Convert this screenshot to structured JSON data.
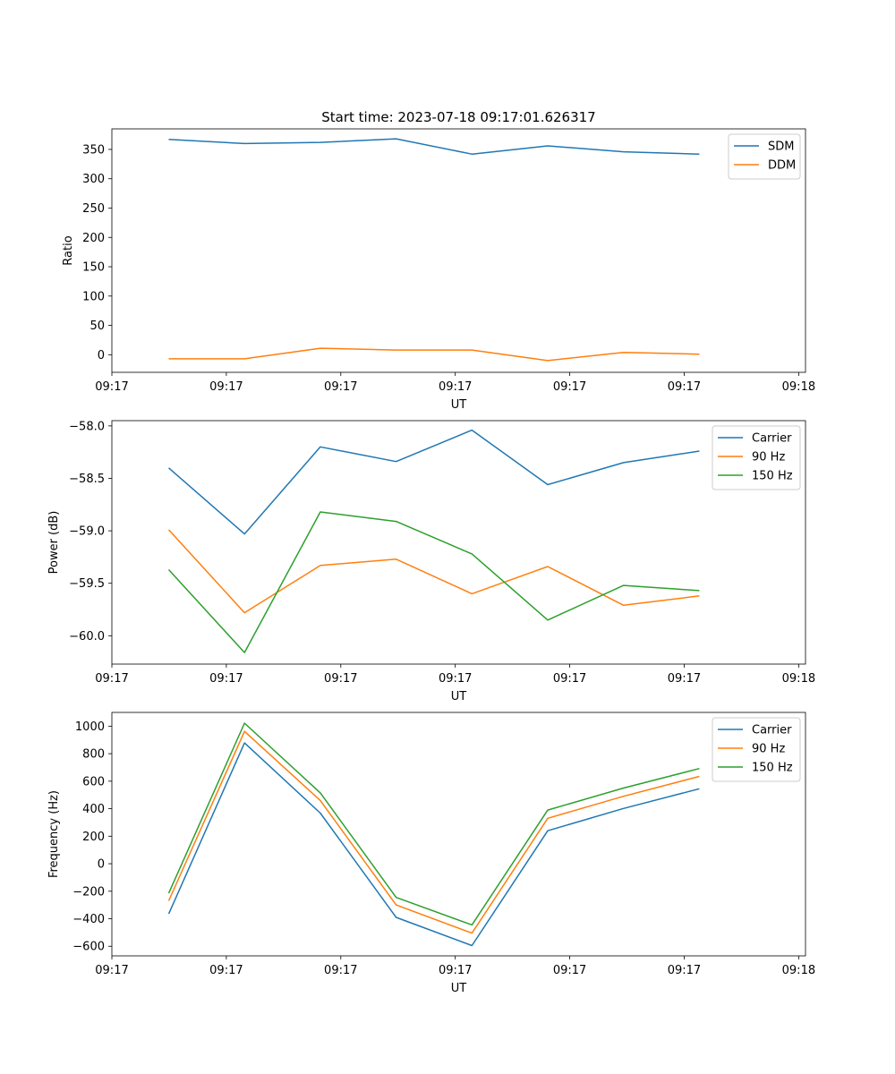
{
  "suptitle": "Start time: 2023-07-18 09:17:01.626317",
  "chart_data": [
    {
      "type": "line",
      "title": "Start time: 2023-07-18 09:17:01.626317",
      "xlabel": "UT",
      "ylabel": "Ratio",
      "x": [
        0,
        1,
        2,
        3,
        4,
        5,
        6,
        7
      ],
      "xlim": [
        -0.75,
        8.4
      ],
      "xticks": [
        -0.75,
        0.76,
        2.27,
        3.78,
        5.29,
        6.8,
        8.31
      ],
      "xtick_labels": [
        "09:17",
        "09:17",
        "09:17",
        "09:17",
        "09:17",
        "09:17",
        "09:18"
      ],
      "ylim": [
        -30,
        385
      ],
      "yticks": [
        0,
        50,
        100,
        150,
        200,
        250,
        300,
        350
      ],
      "ytick_labels": [
        "0",
        "50",
        "100",
        "150",
        "200",
        "250",
        "300",
        "350"
      ],
      "legend": "top-right",
      "series": [
        {
          "name": "SDM",
          "color": "#1f77b4",
          "values": [
            367,
            360,
            362,
            368,
            342,
            356,
            346,
            342
          ]
        },
        {
          "name": "DDM",
          "color": "#ff7f0e",
          "values": [
            -7,
            -7,
            11,
            8,
            8,
            -10,
            4,
            1
          ]
        }
      ]
    },
    {
      "type": "line",
      "title": "",
      "xlabel": "UT",
      "ylabel": "Power (dB)",
      "x": [
        0,
        1,
        2,
        3,
        4,
        5,
        6,
        7
      ],
      "xlim": [
        -0.75,
        8.4
      ],
      "xticks": [
        -0.75,
        0.76,
        2.27,
        3.78,
        5.29,
        6.8,
        8.31
      ],
      "xtick_labels": [
        "09:17",
        "09:17",
        "09:17",
        "09:17",
        "09:17",
        "09:17",
        "09:18"
      ],
      "ylim": [
        -60.27,
        -57.95
      ],
      "yticks": [
        -60.0,
        -59.5,
        -59.0,
        -58.5,
        -58.0
      ],
      "ytick_labels": [
        "−60.0",
        "−59.5",
        "−59.0",
        "−58.5",
        "−58.0"
      ],
      "legend": "top-right",
      "series": [
        {
          "name": "Carrier",
          "color": "#1f77b4",
          "values": [
            -58.4,
            -59.03,
            -58.2,
            -58.34,
            -58.04,
            -58.56,
            -58.35,
            -58.24
          ]
        },
        {
          "name": "90 Hz",
          "color": "#ff7f0e",
          "values": [
            -58.99,
            -59.78,
            -59.33,
            -59.27,
            -59.6,
            -59.34,
            -59.71,
            -59.62
          ]
        },
        {
          "name": "150 Hz",
          "color": "#2ca02c",
          "values": [
            -59.37,
            -60.16,
            -58.82,
            -58.91,
            -59.22,
            -59.85,
            -59.52,
            -59.57
          ]
        }
      ]
    },
    {
      "type": "line",
      "title": "",
      "xlabel": "UT",
      "ylabel": "Frequency (Hz)",
      "x": [
        0,
        1,
        2,
        3,
        4,
        5,
        6,
        7
      ],
      "xlim": [
        -0.75,
        8.4
      ],
      "xticks": [
        -0.75,
        0.76,
        2.27,
        3.78,
        5.29,
        6.8,
        8.31
      ],
      "xtick_labels": [
        "09:17",
        "09:17",
        "09:17",
        "09:17",
        "09:17",
        "09:17",
        "09:18"
      ],
      "ylim": [
        -670,
        1100
      ],
      "yticks": [
        -600,
        -400,
        -200,
        0,
        200,
        400,
        600,
        800,
        1000
      ],
      "ytick_labels": [
        "−600",
        "−400",
        "−200",
        "0",
        "200",
        "400",
        "600",
        "800",
        "1000"
      ],
      "legend": "top-right",
      "series": [
        {
          "name": "Carrier",
          "color": "#1f77b4",
          "values": [
            -365,
            878,
            368,
            -390,
            -595,
            240,
            402,
            545
          ]
        },
        {
          "name": "90 Hz",
          "color": "#ff7f0e",
          "values": [
            -270,
            962,
            460,
            -300,
            -505,
            330,
            490,
            635
          ]
        },
        {
          "name": "150 Hz",
          "color": "#2ca02c",
          "values": [
            -215,
            1022,
            515,
            -245,
            -445,
            390,
            550,
            692
          ]
        }
      ]
    }
  ]
}
